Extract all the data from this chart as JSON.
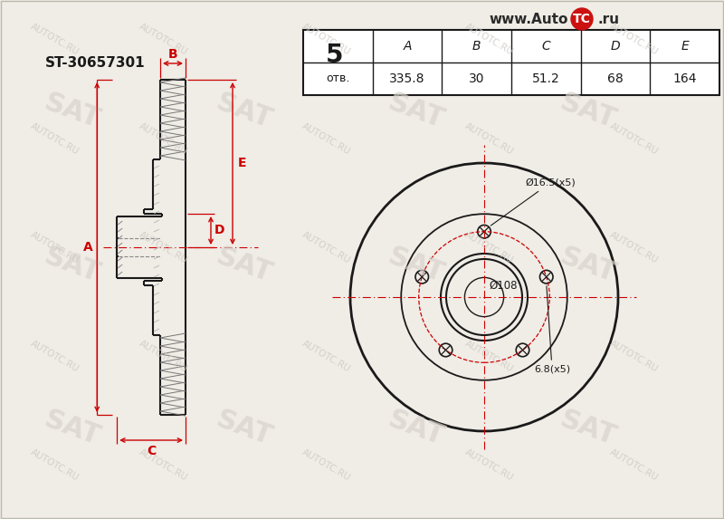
{
  "background_color": "#f0ece6",
  "part_number": "ST-30657301",
  "bolt_count": "5",
  "otv_label": "отв.",
  "table_headers": [
    "A",
    "B",
    "C",
    "D",
    "E"
  ],
  "table_values": [
    "335.8",
    "30",
    "51.2",
    "68",
    "164"
  ],
  "annotation_bolt_hole": "Ø16.5(x5)",
  "annotation_center_hole": "Ø108",
  "annotation_stud": "6.8(x5)",
  "line_color": "#1a1a1a",
  "red_color": "#cc0000",
  "wm_sat_color": "#d8d3cc",
  "wm_auto_color": "#ccc8c2",
  "url_text_color": "#2a2a2a",
  "table_bg": "#ffffff"
}
